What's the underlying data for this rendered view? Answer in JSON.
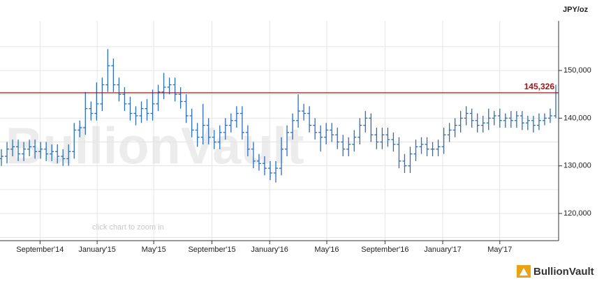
{
  "chart_data": {
    "type": "ohlc",
    "watermark": "BullionVault",
    "hint": "click chart to zoom in",
    "logo": "BullionVault",
    "y_axis_label": "JPY/oz",
    "color": "#2a6ebb",
    "grid": true,
    "last_value": {
      "value": 145326,
      "label": "145,326",
      "color": "#a31515"
    },
    "xlim": [
      -0.25,
      99.5
    ],
    "xticks": [
      {
        "value": 6.9,
        "label": "September'14"
      },
      {
        "value": 17.1,
        "label": "January'15"
      },
      {
        "value": 27.2,
        "label": "May'15"
      },
      {
        "value": 37.6,
        "label": "September'15"
      },
      {
        "value": 47.9,
        "label": "January'16"
      },
      {
        "value": 58.1,
        "label": "May'16"
      },
      {
        "value": 68.5,
        "label": "September'16"
      },
      {
        "value": 78.8,
        "label": "January'17"
      },
      {
        "value": 89.0,
        "label": "May'17"
      }
    ],
    "ylim": [
      114300,
      160400
    ],
    "yticks": [
      {
        "value": 120000,
        "label": "120,000"
      },
      {
        "value": 130000,
        "label": "130,000"
      },
      {
        "value": 140000,
        "label": "140,000"
      },
      {
        "value": 150000,
        "label": "150,000"
      }
    ],
    "minor_yticks": [
      115000,
      125000,
      135000,
      145000,
      155000
    ],
    "x": [
      0,
      1,
      2,
      3,
      4,
      5,
      6,
      7,
      8,
      9,
      10,
      11,
      12,
      13,
      14,
      15,
      16,
      17,
      18,
      19,
      20,
      21,
      22,
      23,
      24,
      25,
      26,
      27,
      28,
      29,
      30,
      31,
      32,
      33,
      34,
      35,
      36,
      37,
      38,
      39,
      40,
      41,
      42,
      43,
      44,
      45,
      46,
      47,
      48,
      49,
      50,
      51,
      52,
      53,
      54,
      55,
      56,
      57,
      58,
      59,
      60,
      61,
      62,
      63,
      64,
      65,
      66,
      67,
      68,
      69,
      70,
      71,
      72,
      73,
      74,
      75,
      76,
      77,
      78,
      79,
      80,
      81,
      82,
      83,
      84,
      85,
      86,
      87,
      88,
      89,
      90,
      91,
      92,
      93,
      94,
      95,
      96,
      97,
      98,
      99
    ],
    "open": [
      131500,
      132000,
      133500,
      134000,
      132500,
      133500,
      134000,
      133000,
      133500,
      132500,
      133000,
      132000,
      131500,
      133000,
      137500,
      138000,
      142000,
      141000,
      143000,
      147000,
      151000,
      147000,
      145000,
      143000,
      141000,
      140500,
      142000,
      141000,
      143000,
      145500,
      146500,
      147000,
      145000,
      143500,
      140500,
      137500,
      136000,
      138500,
      136000,
      135000,
      137000,
      138500,
      139500,
      141000,
      137000,
      133500,
      131000,
      130500,
      129500,
      128500,
      129500,
      133500,
      137000,
      139500,
      141500,
      141000,
      138500,
      137000,
      136000,
      137500,
      136500,
      135000,
      133500,
      134500,
      136000,
      138500,
      140000,
      136500,
      135000,
      136500,
      135500,
      134500,
      131000,
      130000,
      132500,
      134000,
      134500,
      133500,
      133500,
      134000,
      136500,
      137500,
      138500,
      140000,
      141000,
      139500,
      138500,
      139000,
      140000,
      140500,
      139500,
      140000,
      139500,
      140500,
      139000,
      139500,
      138500,
      139500,
      140000,
      140500
    ],
    "high": [
      133500,
      135000,
      135500,
      135500,
      135000,
      135500,
      135500,
      135000,
      135000,
      134500,
      134500,
      133500,
      134500,
      139000,
      139500,
      145500,
      143500,
      147500,
      148500,
      154500,
      152500,
      148500,
      146500,
      144500,
      142500,
      143500,
      144000,
      146000,
      147000,
      149500,
      148500,
      148500,
      146500,
      145000,
      142000,
      139000,
      143000,
      140000,
      137500,
      138500,
      140000,
      141000,
      142500,
      142500,
      138500,
      135000,
      132500,
      132000,
      131000,
      131000,
      136000,
      138500,
      141000,
      145000,
      143000,
      142500,
      140000,
      138500,
      139000,
      139000,
      138000,
      136500,
      136000,
      137500,
      140000,
      141500,
      141000,
      138000,
      138000,
      138000,
      137000,
      136000,
      132500,
      134000,
      135500,
      136000,
      136000,
      135000,
      135500,
      138000,
      139000,
      140000,
      141500,
      142500,
      142000,
      141000,
      140500,
      142000,
      141500,
      142000,
      141000,
      141500,
      141500,
      141500,
      140500,
      140500,
      141000,
      141000,
      142000,
      147000
    ],
    "low": [
      130000,
      130500,
      132000,
      131000,
      131000,
      132000,
      131500,
      131500,
      131000,
      131000,
      130500,
      130000,
      130000,
      131500,
      136000,
      136500,
      139500,
      139500,
      141500,
      145500,
      145500,
      143500,
      141500,
      139500,
      138500,
      139000,
      139500,
      139500,
      141500,
      144000,
      145000,
      143500,
      142000,
      139000,
      136000,
      134000,
      134500,
      134500,
      133500,
      133500,
      135500,
      137000,
      138000,
      135500,
      132000,
      129500,
      129000,
      128000,
      127000,
      126500,
      128000,
      132000,
      135500,
      138000,
      139500,
      137000,
      135500,
      133000,
      134500,
      135000,
      133500,
      132000,
      132000,
      133000,
      134500,
      137000,
      135000,
      133500,
      133500,
      134000,
      133000,
      129500,
      128500,
      128500,
      131000,
      132500,
      132000,
      132000,
      132000,
      132500,
      135000,
      136000,
      137000,
      138500,
      138000,
      137000,
      137000,
      137500,
      138500,
      138000,
      138000,
      138000,
      138000,
      137500,
      137500,
      137000,
      137500,
      138500,
      139000,
      140000
    ],
    "close": [
      132000,
      133500,
      134000,
      132500,
      133500,
      134000,
      133000,
      133500,
      132500,
      133000,
      132000,
      131500,
      133000,
      137500,
      138000,
      142000,
      141000,
      143000,
      147000,
      151000,
      147000,
      145000,
      143000,
      141000,
      140500,
      142000,
      141000,
      143000,
      145500,
      146500,
      147000,
      145000,
      143500,
      140500,
      137500,
      136000,
      138500,
      136000,
      135000,
      137000,
      138500,
      139500,
      141000,
      137000,
      133500,
      131000,
      130500,
      129500,
      128500,
      129500,
      133500,
      137000,
      139500,
      141500,
      141000,
      138500,
      137000,
      136000,
      137500,
      136500,
      135000,
      133500,
      134500,
      136000,
      138500,
      140000,
      136500,
      135000,
      136500,
      135500,
      134500,
      131000,
      130000,
      132500,
      134000,
      134500,
      133500,
      133500,
      134000,
      136500,
      137500,
      138500,
      140000,
      141000,
      139500,
      138500,
      139000,
      140000,
      140500,
      139500,
      140000,
      139500,
      140500,
      139000,
      139500,
      138500,
      139500,
      140000,
      140500,
      145326
    ]
  }
}
